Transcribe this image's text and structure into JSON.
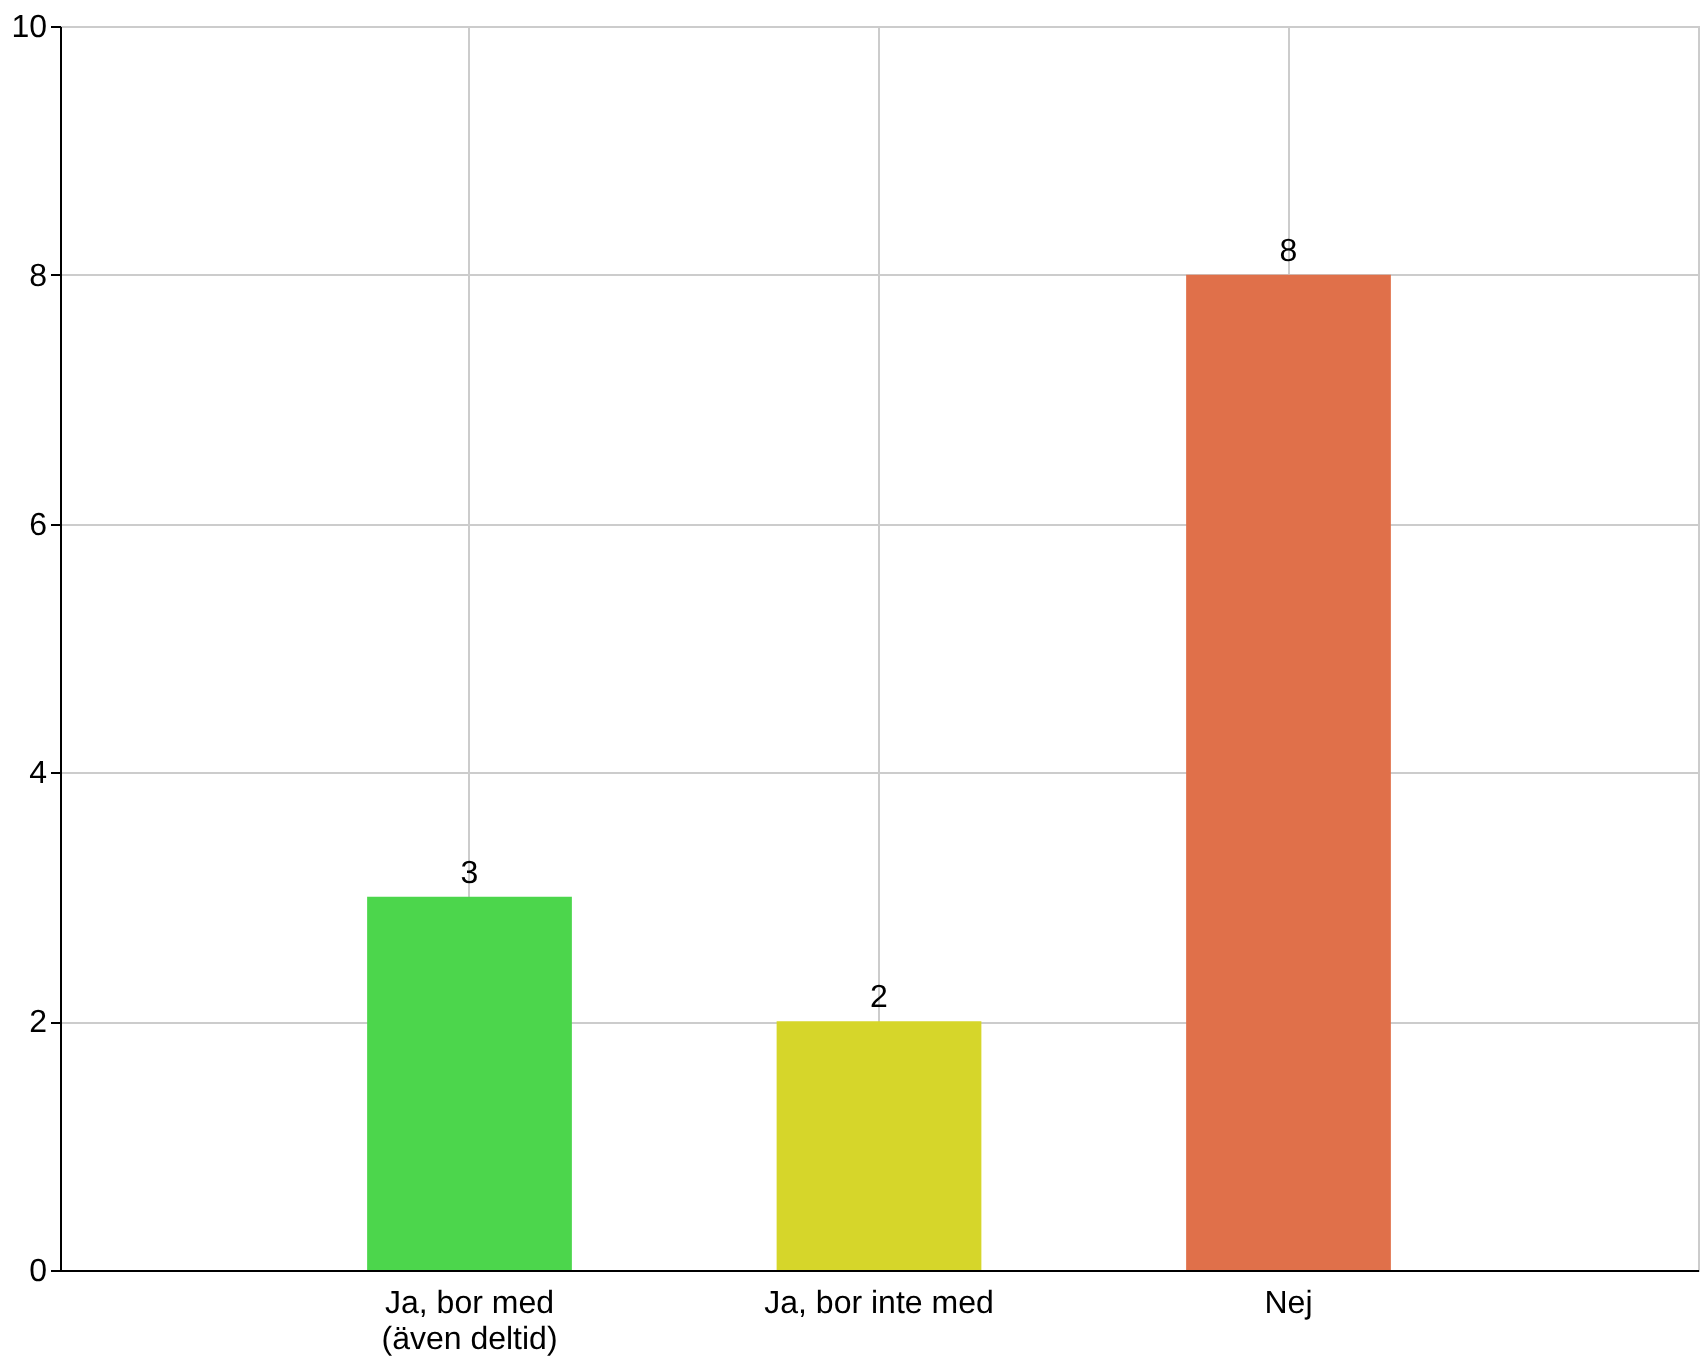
{
  "chart_data": {
    "type": "bar",
    "categories": [
      "Ja, bor med\n(även deltid)",
      "Ja, bor inte med",
      "Nej"
    ],
    "values": [
      3,
      2,
      8
    ],
    "colors": [
      "#4cd64c",
      "#d6d62a",
      "#e0704a"
    ],
    "ylim": [
      0,
      10
    ],
    "yticks": [
      0,
      2,
      4,
      6,
      8,
      10
    ],
    "grid": true,
    "data_labels": true
  }
}
